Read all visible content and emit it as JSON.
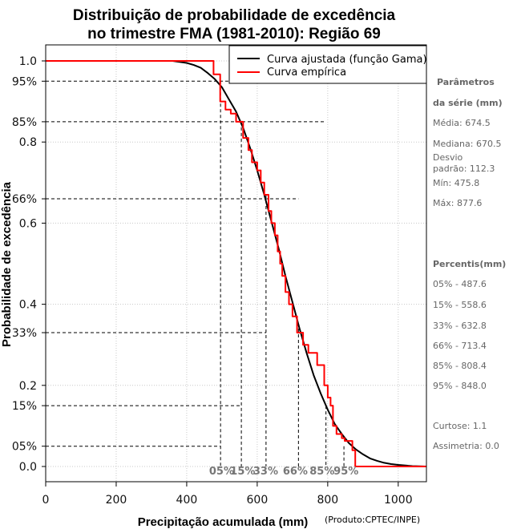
{
  "chart_data": {
    "type": "line",
    "title": [
      "Distribuição de probabilidade de excedência",
      "no trimestre FMA (1981-2010): Região 69"
    ],
    "xlabel": "Precipitação acumulada (mm)",
    "ylabel": "Probabilidade de excedência",
    "credit": "(Produto:CPTEC/INPE)",
    "xlim": [
      0,
      1080
    ],
    "ylim": [
      0.0,
      1.0
    ],
    "xticks": [
      {
        "value": 0,
        "label": "0"
      },
      {
        "value": 200,
        "label": "200"
      },
      {
        "value": 400,
        "label": "400"
      },
      {
        "value": 600,
        "label": "600"
      },
      {
        "value": 800,
        "label": "800"
      },
      {
        "value": 1000,
        "label": "1000"
      }
    ],
    "yticks": [
      {
        "value": 1.0,
        "label": "1.0"
      },
      {
        "value": 0.95,
        "label": "95%"
      },
      {
        "value": 0.85,
        "label": "85%"
      },
      {
        "value": 0.8,
        "label": "0.8"
      },
      {
        "value": 0.66,
        "label": "66%"
      },
      {
        "value": 0.6,
        "label": "0.6"
      },
      {
        "value": 0.4,
        "label": "0.4"
      },
      {
        "value": 0.33,
        "label": "33%"
      },
      {
        "value": 0.2,
        "label": "0.2"
      },
      {
        "value": 0.15,
        "label": "15%"
      },
      {
        "value": 0.05,
        "label": "05%"
      },
      {
        "value": 0.0,
        "label": "0.0"
      }
    ],
    "grid": true,
    "legend": {
      "position": "top-right",
      "entries": [
        {
          "label": "Curva ajustada (função Gama)",
          "color": "#000000"
        },
        {
          "label": "Curva empírica",
          "color": "#ff0000"
        }
      ]
    },
    "series": [
      {
        "name": "Curva ajustada (função Gama)",
        "color": "#000000",
        "points": [
          [
            0,
            1.0
          ],
          [
            360,
            1.0
          ],
          [
            400,
            0.995
          ],
          [
            420,
            0.99
          ],
          [
            440,
            0.983
          ],
          [
            460,
            0.97
          ],
          [
            480,
            0.955
          ],
          [
            500,
            0.935
          ],
          [
            520,
            0.905
          ],
          [
            540,
            0.875
          ],
          [
            560,
            0.835
          ],
          [
            580,
            0.785
          ],
          [
            600,
            0.73
          ],
          [
            620,
            0.67
          ],
          [
            640,
            0.605
          ],
          [
            660,
            0.54
          ],
          [
            680,
            0.47
          ],
          [
            700,
            0.405
          ],
          [
            720,
            0.34
          ],
          [
            740,
            0.28
          ],
          [
            760,
            0.225
          ],
          [
            780,
            0.18
          ],
          [
            800,
            0.14
          ],
          [
            820,
            0.105
          ],
          [
            840,
            0.08
          ],
          [
            860,
            0.058
          ],
          [
            880,
            0.042
          ],
          [
            900,
            0.03
          ],
          [
            920,
            0.02
          ],
          [
            940,
            0.014
          ],
          [
            960,
            0.009
          ],
          [
            980,
            0.006
          ],
          [
            1000,
            0.004
          ],
          [
            1040,
            0.001
          ],
          [
            1080,
            0.0
          ]
        ]
      },
      {
        "name": "Curva empírica",
        "color": "#ff0000",
        "points": [
          [
            0,
            1.0
          ],
          [
            476,
            1.0
          ],
          [
            476,
            0.967
          ],
          [
            495,
            0.967
          ],
          [
            495,
            0.9
          ],
          [
            510,
            0.9
          ],
          [
            510,
            0.88
          ],
          [
            525,
            0.88
          ],
          [
            525,
            0.87
          ],
          [
            540,
            0.87
          ],
          [
            540,
            0.85
          ],
          [
            560,
            0.85
          ],
          [
            560,
            0.81
          ],
          [
            575,
            0.81
          ],
          [
            575,
            0.78
          ],
          [
            585,
            0.78
          ],
          [
            585,
            0.75
          ],
          [
            600,
            0.75
          ],
          [
            600,
            0.73
          ],
          [
            610,
            0.73
          ],
          [
            610,
            0.7
          ],
          [
            620,
            0.7
          ],
          [
            620,
            0.67
          ],
          [
            632,
            0.67
          ],
          [
            632,
            0.63
          ],
          [
            640,
            0.63
          ],
          [
            640,
            0.6
          ],
          [
            650,
            0.6
          ],
          [
            650,
            0.57
          ],
          [
            658,
            0.57
          ],
          [
            658,
            0.53
          ],
          [
            665,
            0.53
          ],
          [
            665,
            0.5
          ],
          [
            671,
            0.5
          ],
          [
            671,
            0.47
          ],
          [
            680,
            0.47
          ],
          [
            680,
            0.43
          ],
          [
            690,
            0.43
          ],
          [
            690,
            0.4
          ],
          [
            700,
            0.4
          ],
          [
            700,
            0.37
          ],
          [
            713,
            0.37
          ],
          [
            713,
            0.33
          ],
          [
            730,
            0.33
          ],
          [
            730,
            0.3
          ],
          [
            745,
            0.3
          ],
          [
            745,
            0.28
          ],
          [
            770,
            0.28
          ],
          [
            770,
            0.25
          ],
          [
            790,
            0.25
          ],
          [
            790,
            0.2
          ],
          [
            800,
            0.2
          ],
          [
            800,
            0.17
          ],
          [
            808,
            0.17
          ],
          [
            808,
            0.15
          ],
          [
            815,
            0.15
          ],
          [
            815,
            0.1
          ],
          [
            825,
            0.1
          ],
          [
            825,
            0.08
          ],
          [
            840,
            0.08
          ],
          [
            840,
            0.07
          ],
          [
            848,
            0.07
          ],
          [
            848,
            0.063
          ],
          [
            870,
            0.063
          ],
          [
            870,
            0.04
          ],
          [
            878,
            0.04
          ],
          [
            878,
            0.0
          ],
          [
            1080,
            0.0
          ]
        ]
      }
    ],
    "percentiles": [
      {
        "p": 0.05,
        "value": 487.6,
        "tag": "05%"
      },
      {
        "p": 0.15,
        "value": 558.6,
        "tag": "15%"
      },
      {
        "p": 0.33,
        "value": 632.8,
        "tag": "33%"
      },
      {
        "p": 0.66,
        "value": 713.4,
        "tag": "66%"
      },
      {
        "p": 0.85,
        "value": 808.4,
        "tag": "85%"
      },
      {
        "p": 0.95,
        "value": 848.0,
        "tag": "95%"
      }
    ],
    "annotations": {
      "params_title": [
        "Parâmetros",
        "da série (mm)"
      ],
      "params": [
        [
          "Média: 674.5"
        ],
        [
          "Mediana: 670.5"
        ],
        [
          "Desvio",
          "padrão: 112.3"
        ],
        [
          "Mín: 475.8"
        ],
        [
          "Máx: 877.6"
        ]
      ],
      "percentis_title": "Percentis(mm)",
      "percentis": [
        "05% - 487.6",
        "15% - 558.6",
        "33% - 632.8",
        "66% - 713.4",
        "85% - 808.4",
        "95% - 848.0"
      ],
      "stats": [
        "Curtose: 1.1",
        "Assimetria: 0.0"
      ]
    }
  }
}
